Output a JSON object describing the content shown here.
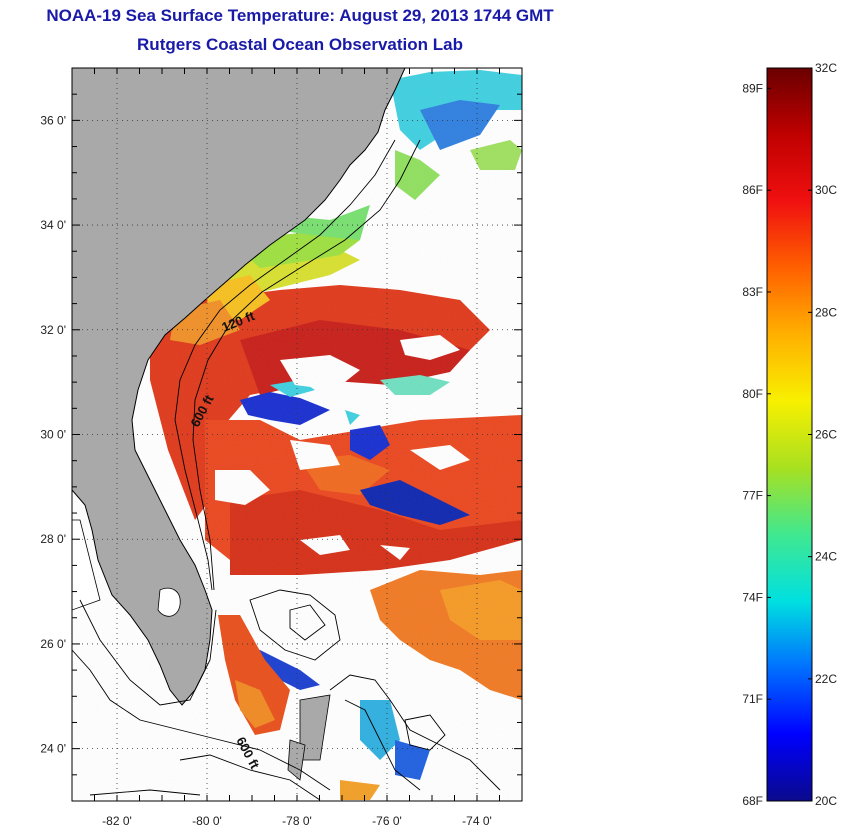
{
  "title": "NOAA-19 Sea Surface Temperature:  August 29, 2013 1744 GMT",
  "subtitle": "Rutgers Coastal Ocean Observation Lab",
  "colors": {
    "land": "#a8a8a8",
    "ocean_cloud": "#ffffff",
    "coastline": "#000000",
    "grid": "#333333"
  },
  "map": {
    "lon_range": [
      -83,
      -73
    ],
    "lat_range": [
      23,
      37
    ],
    "lat_ticks": [
      {
        "value": 24,
        "label": "24 0'"
      },
      {
        "value": 26,
        "label": "26 0'"
      },
      {
        "value": 28,
        "label": "28 0'"
      },
      {
        "value": 30,
        "label": "30 0'"
      },
      {
        "value": 32,
        "label": "32 0'"
      },
      {
        "value": 34,
        "label": "34 0'"
      },
      {
        "value": 36,
        "label": "36 0'"
      }
    ],
    "lon_ticks": [
      {
        "value": -82,
        "label": "-82 0'"
      },
      {
        "value": -80,
        "label": "-80 0'"
      },
      {
        "value": -78,
        "label": "-78 0'"
      },
      {
        "value": -76,
        "label": "-76 0'"
      },
      {
        "value": -74,
        "label": "-74 0'"
      }
    ],
    "isobath_labels": [
      "120 ft",
      "600 ft",
      "600 ft"
    ]
  },
  "colorbar": {
    "range_c": [
      20,
      32
    ],
    "celsius_labels": [
      "32C",
      "30C",
      "28C",
      "26C",
      "24C",
      "22C",
      "20C"
    ],
    "fahrenheit_labels": [
      "89F",
      "86F",
      "83F",
      "80F",
      "77F",
      "74F",
      "71F",
      "68F"
    ],
    "stops": [
      "#0a0a8c",
      "#0000ff",
      "#0070ff",
      "#00e0e0",
      "#40e890",
      "#a8e020",
      "#f8f000",
      "#ffb000",
      "#ff6000",
      "#f01010",
      "#c00000",
      "#6a0000"
    ]
  }
}
